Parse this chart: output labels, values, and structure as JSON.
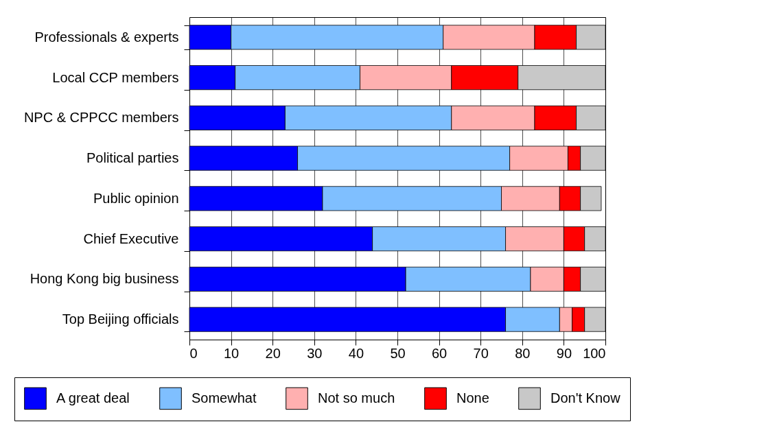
{
  "chart_data": {
    "type": "bar",
    "orientation": "horizontal",
    "stacked": true,
    "categories": [
      "Professionals & experts",
      "Local CCP members",
      "NPC & CPPCC members",
      "Political parties",
      "Public opinion",
      "Chief Executive",
      "Hong Kong big business",
      "Top Beijing officials"
    ],
    "series": [
      {
        "name": "A great deal",
        "color": "#0000ff",
        "values": [
          10,
          11,
          23,
          26,
          32,
          44,
          52,
          76
        ]
      },
      {
        "name": "Somewhat",
        "color": "#7fbfff",
        "values": [
          51,
          30,
          40,
          51,
          43,
          32,
          30,
          13
        ]
      },
      {
        "name": "Not so much",
        "color": "#ffb0b0",
        "values": [
          22,
          22,
          20,
          14,
          14,
          14,
          8,
          3
        ]
      },
      {
        "name": "None",
        "color": "#ff0000",
        "values": [
          10,
          16,
          10,
          3,
          5,
          5,
          4,
          3
        ]
      },
      {
        "name": "Don't Know",
        "color": "#c8c8c8",
        "values": [
          7,
          21,
          7,
          6,
          5,
          5,
          6,
          5
        ]
      }
    ],
    "xlim": [
      0,
      100
    ],
    "xticks": [
      0,
      10,
      20,
      30,
      40,
      50,
      60,
      70,
      80,
      90,
      100
    ],
    "grid": true,
    "legend": "bottom"
  }
}
